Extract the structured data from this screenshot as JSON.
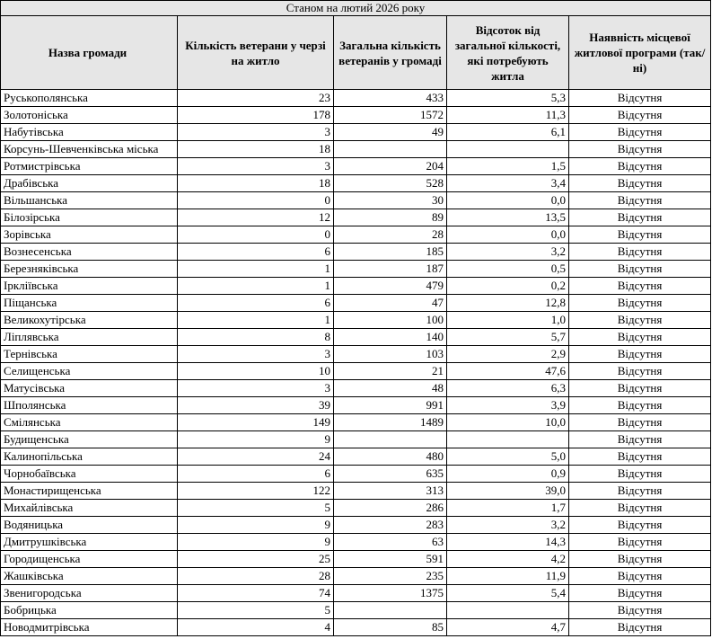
{
  "header": {
    "caption": "Станом на лютий 2026 року"
  },
  "table": {
    "headers": [
      "Назва громади",
      "Кількість ветерани у черзі на житло",
      "Загальна кількість ветеранів у громаді",
      "Відсоток від загальної кількості, які потребують житла",
      "Наявність місцевої житлової програми (так/ні)"
    ],
    "rows": [
      [
        "Руськополянська",
        23,
        433,
        "5,3",
        "Відсутня"
      ],
      [
        "Золотоніська",
        178,
        1572,
        "11,3",
        "Відсутня"
      ],
      [
        "Набутівська",
        3,
        49,
        "6,1",
        "Відсутня"
      ],
      [
        "Корсунь-Шевченківська міська",
        18,
        null,
        null,
        "Відсутня"
      ],
      [
        "Ротмистрівська",
        3,
        204,
        "1,5",
        "Відсутня"
      ],
      [
        "Драбівська",
        18,
        528,
        "3,4",
        "Відсутня"
      ],
      [
        "Вільшанська",
        0,
        30,
        "0,0",
        "Відсутня"
      ],
      [
        "Білозірська",
        12,
        89,
        "13,5",
        "Відсутня"
      ],
      [
        "Зорівська",
        0,
        28,
        "0,0",
        "Відсутня"
      ],
      [
        "Вознесенська",
        6,
        185,
        "3,2",
        "Відсутня"
      ],
      [
        "Березняківська",
        1,
        187,
        "0,5",
        "Відсутня"
      ],
      [
        "Іркліївська",
        1,
        479,
        "0,2",
        "Відсутня"
      ],
      [
        "Піщанська",
        6,
        47,
        "12,8",
        "Відсутня"
      ],
      [
        "Великохутірська",
        1,
        100,
        "1,0",
        "Відсутня"
      ],
      [
        "Ліплявська",
        8,
        140,
        "5,7",
        "Відсутня"
      ],
      [
        "Тернівська",
        3,
        103,
        "2,9",
        "Відсутня"
      ],
      [
        "Селищенська",
        10,
        21,
        "47,6",
        "Відсутня"
      ],
      [
        "Матусівська",
        3,
        48,
        "6,3",
        "Відсутня"
      ],
      [
        "Шполянська",
        39,
        991,
        "3,9",
        "Відсутня"
      ],
      [
        "Смілянська",
        149,
        1489,
        "10,0",
        "Відсутня"
      ],
      [
        "Будищенська",
        9,
        null,
        null,
        "Відсутня"
      ],
      [
        "Калинопільська",
        24,
        480,
        "5,0",
        "Відсутня"
      ],
      [
        "Чорнобаївська",
        6,
        635,
        "0,9",
        "Відсутня"
      ],
      [
        "Монастирищенська",
        122,
        313,
        "39,0",
        "Відсутня"
      ],
      [
        "Михайлівська",
        5,
        286,
        "1,7",
        "Відсутня"
      ],
      [
        "Водяницька",
        9,
        283,
        "3,2",
        "Відсутня"
      ],
      [
        "Дмитрушківська",
        9,
        63,
        "14,3",
        "Відсутня"
      ],
      [
        "Городищенська",
        25,
        591,
        "4,2",
        "Відсутня"
      ],
      [
        "Жашківська",
        28,
        235,
        "11,9",
        "Відсутня"
      ],
      [
        "Звенигородська",
        74,
        1375,
        "5,4",
        "Відсутня"
      ],
      [
        "Бобрицька",
        5,
        null,
        null,
        "Відсутня"
      ],
      [
        "Новодмитрівська",
        4,
        85,
        "4,7",
        "Відсутня"
      ]
    ]
  }
}
